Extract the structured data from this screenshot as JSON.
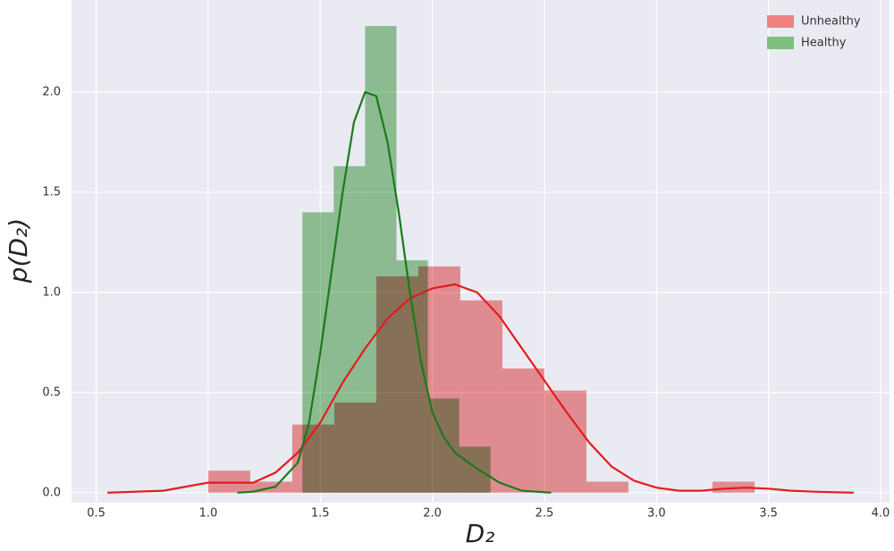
{
  "chart_data": {
    "type": "histogram",
    "xlabel": "D₂",
    "ylabel": "p(D₂)",
    "xlim": [
      0.39,
      4.04
    ],
    "ylim": [
      -0.05,
      2.46
    ],
    "xticks": [
      0.5,
      {
        "value": 1.0,
        "label": "1.0"
      },
      1.5,
      {
        "value": 2.0,
        "label": "2.0"
      },
      2.5,
      {
        "value": 3.0,
        "label": "3.0"
      },
      3.5,
      {
        "value": 4.0,
        "label": "4.0"
      }
    ],
    "yticks": [
      {
        "value": 0.0,
        "label": "0.0"
      },
      0.5,
      {
        "value": 1.0,
        "label": "1.0"
      },
      1.5,
      {
        "value": 2.0,
        "label": "2.0"
      }
    ],
    "grid": true,
    "legend": "upper right",
    "series": [
      {
        "name": "Unhealthy",
        "color": "#f08080",
        "line_color": "#e41a1c",
        "bins": [
          1.0,
          1.1875,
          1.375,
          1.5625,
          1.75,
          1.9375,
          2.125,
          2.3125,
          2.5,
          2.6875,
          2.875,
          3.0625,
          3.25,
          3.4375
        ],
        "values": [
          0.11,
          0.055,
          0.34,
          0.45,
          1.08,
          1.13,
          0.96,
          0.62,
          0.51,
          0.055,
          0,
          0,
          0.055
        ],
        "kde_x": [
          0.55,
          0.8,
          1.0,
          1.1,
          1.2,
          1.3,
          1.4,
          1.5,
          1.6,
          1.7,
          1.8,
          1.9,
          2.0,
          2.1,
          2.2,
          2.3,
          2.4,
          2.5,
          2.6,
          2.7,
          2.8,
          2.9,
          3.0,
          3.1,
          3.2,
          3.3,
          3.4,
          3.5,
          3.6,
          3.7,
          3.88
        ],
        "kde_values": [
          0.0,
          0.01,
          0.05,
          0.05,
          0.05,
          0.1,
          0.2,
          0.35,
          0.55,
          0.72,
          0.87,
          0.97,
          1.02,
          1.04,
          1.0,
          0.88,
          0.72,
          0.56,
          0.4,
          0.25,
          0.13,
          0.06,
          0.025,
          0.01,
          0.01,
          0.02,
          0.025,
          0.02,
          0.01,
          0.005,
          0.0
        ]
      },
      {
        "name": "Healthy",
        "color": "#7fbf7f",
        "line_color": "#1a7a1a",
        "bins": [
          1.42,
          1.56,
          1.7,
          1.84,
          1.98,
          2.12,
          2.26
        ],
        "values": [
          1.4,
          1.63,
          2.33,
          1.16,
          0.47,
          0.23
        ],
        "kde_x": [
          1.13,
          1.2,
          1.3,
          1.4,
          1.45,
          1.5,
          1.55,
          1.6,
          1.65,
          1.7,
          1.75,
          1.8,
          1.85,
          1.9,
          1.95,
          2.0,
          2.05,
          2.1,
          2.2,
          2.3,
          2.4,
          2.53
        ],
        "kde_values": [
          0.0,
          0.005,
          0.03,
          0.15,
          0.35,
          0.7,
          1.1,
          1.5,
          1.85,
          2.0,
          1.98,
          1.75,
          1.4,
          1.0,
          0.65,
          0.4,
          0.28,
          0.2,
          0.12,
          0.05,
          0.01,
          0.0
        ]
      }
    ]
  }
}
